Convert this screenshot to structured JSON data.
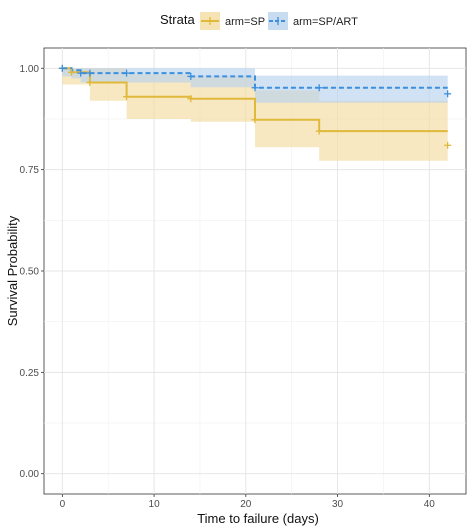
{
  "chart_data": {
    "type": "line",
    "subtype": "kaplan-meier",
    "xlabel": "Time to failure (days)",
    "ylabel": "Survival Probability",
    "xlim": [
      -2,
      44
    ],
    "ylim": [
      -0.05,
      1.05
    ],
    "xticks": [
      0,
      10,
      20,
      30,
      40
    ],
    "yticks": [
      0,
      0.25,
      0.5,
      0.75,
      1
    ],
    "ytick_labels": [
      "0.00",
      "0.25",
      "0.50",
      "0.75",
      "1.00"
    ],
    "grid": true,
    "legend": {
      "title": "Strata",
      "position": "top"
    },
    "series": [
      {
        "name": "arm=SP",
        "color": "#E0B83A",
        "band_color": "#F2DCA0",
        "line_style": "solid",
        "steps": [
          {
            "x": 0,
            "y": 1.0,
            "lo": 0.96,
            "hi": 1.0
          },
          {
            "x": 1,
            "y": 0.99,
            "lo": 0.96,
            "hi": 1.0
          },
          {
            "x": 3,
            "y": 0.965,
            "lo": 0.92,
            "hi": 1.0
          },
          {
            "x": 7,
            "y": 0.93,
            "lo": 0.875,
            "hi": 0.985
          },
          {
            "x": 14,
            "y": 0.925,
            "lo": 0.868,
            "hi": 0.98
          },
          {
            "x": 21,
            "y": 0.873,
            "lo": 0.805,
            "hi": 0.945
          },
          {
            "x": 28,
            "y": 0.845,
            "lo": 0.772,
            "hi": 0.92
          }
        ],
        "end_x": 42,
        "censored": [
          {
            "x": 0,
            "y": 1.0
          },
          {
            "x": 1,
            "y": 0.99
          },
          {
            "x": 3,
            "y": 0.965
          },
          {
            "x": 7,
            "y": 0.93
          },
          {
            "x": 14,
            "y": 0.925
          },
          {
            "x": 21,
            "y": 0.873
          },
          {
            "x": 28,
            "y": 0.845
          },
          {
            "x": 42,
            "y": 0.81
          }
        ]
      },
      {
        "name": "arm=SP/ART",
        "color": "#3C8FDD",
        "band_color": "#B9D3EE",
        "line_style": "dashed",
        "steps": [
          {
            "x": 0,
            "y": 1.0,
            "lo": 0.98,
            "hi": 1.0
          },
          {
            "x": 1,
            "y": 0.995,
            "lo": 0.975,
            "hi": 1.0
          },
          {
            "x": 2,
            "y": 0.988,
            "lo": 0.965,
            "hi": 1.0
          },
          {
            "x": 14,
            "y": 0.98,
            "lo": 0.953,
            "hi": 1.0
          },
          {
            "x": 21,
            "y": 0.952,
            "lo": 0.915,
            "hi": 0.982
          }
        ],
        "end_x": 42,
        "censored": [
          {
            "x": 0,
            "y": 1.0
          },
          {
            "x": 2,
            "y": 0.988
          },
          {
            "x": 3,
            "y": 0.988
          },
          {
            "x": 7,
            "y": 0.988
          },
          {
            "x": 14,
            "y": 0.98
          },
          {
            "x": 21,
            "y": 0.952
          },
          {
            "x": 28,
            "y": 0.952
          },
          {
            "x": 42,
            "y": 0.937
          }
        ]
      }
    ]
  }
}
